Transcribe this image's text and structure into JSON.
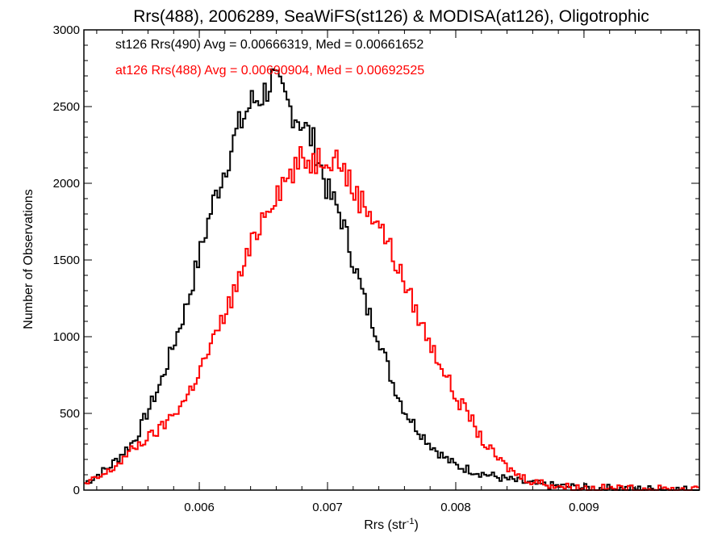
{
  "chart_data": {
    "type": "line",
    "title": "Rrs(488), 2006289, SeaWiFS(st126) & MODISA(at126), Oligotrophic",
    "xlabel": "Rrs (str",
    "xlabel_sup": "-1",
    "xlabel_close": ")",
    "ylabel": "Number of Observations",
    "xlim": [
      0.0051,
      0.0099
    ],
    "ylim": [
      0,
      3000
    ],
    "x_ticks": [
      0.006,
      0.007,
      0.008,
      0.009
    ],
    "x_tick_labels": [
      "0.006",
      "0.007",
      "0.008",
      "0.009"
    ],
    "y_ticks": [
      0,
      500,
      1000,
      1500,
      2000,
      2500,
      3000
    ],
    "y_tick_labels": [
      "0",
      "500",
      "1000",
      "1500",
      "2000",
      "2500",
      "3000"
    ],
    "grid": false,
    "annotations": [
      {
        "text": "st126 Rrs(490) Avg = 0.00666319, Med = 0.00661652",
        "color": "#000000"
      },
      {
        "text": "at126 Rrs(488) Avg = 0.00690904, Med = 0.00692525",
        "color": "#ff0000"
      }
    ],
    "series": [
      {
        "color": "#000000",
        "x": [
          0.0051,
          0.0053,
          0.0055,
          0.0057,
          0.0059,
          0.0061,
          0.0063,
          0.0064,
          0.0065,
          0.00657,
          0.0067,
          0.0068,
          0.0069,
          0.007,
          0.0071,
          0.0072,
          0.0073,
          0.0074,
          0.0075,
          0.0076,
          0.0077,
          0.0078,
          0.0079,
          0.008,
          0.0082,
          0.0084,
          0.0086,
          0.0088,
          0.009,
          0.0093,
          0.0096,
          0.0099
        ],
        "values": [
          40,
          150,
          330,
          700,
          1200,
          1850,
          2350,
          2520,
          2580,
          2680,
          2500,
          2400,
          2250,
          1950,
          1800,
          1500,
          1200,
          1000,
          720,
          520,
          400,
          300,
          220,
          160,
          110,
          70,
          40,
          25,
          15,
          10,
          5,
          3
        ]
      },
      {
        "color": "#ff0000",
        "x": [
          0.0051,
          0.0053,
          0.0055,
          0.0057,
          0.0059,
          0.0061,
          0.0063,
          0.0065,
          0.0066,
          0.0067,
          0.0068,
          0.0069,
          0.007,
          0.0071,
          0.0072,
          0.0073,
          0.0074,
          0.0075,
          0.0076,
          0.0077,
          0.0078,
          0.0079,
          0.008,
          0.0081,
          0.0082,
          0.0083,
          0.0084,
          0.0085,
          0.0086,
          0.0088,
          0.009,
          0.0093,
          0.0096,
          0.0099
        ],
        "values": [
          30,
          120,
          280,
          400,
          600,
          950,
          1350,
          1800,
          1950,
          2050,
          2150,
          2150,
          2200,
          2150,
          1950,
          1850,
          1750,
          1550,
          1350,
          1150,
          950,
          800,
          600,
          500,
          330,
          230,
          150,
          90,
          60,
          25,
          15,
          8,
          5,
          2
        ]
      }
    ]
  }
}
